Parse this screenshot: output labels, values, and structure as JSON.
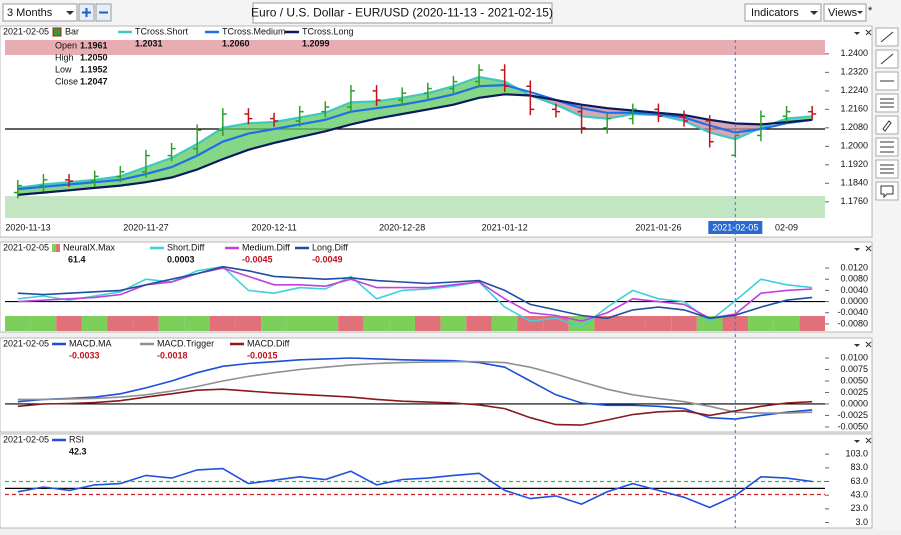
{
  "toolbar": {
    "range": "3 Months",
    "title": "Euro / U.S. Dollar - EUR/USD (2020-11-13 - 2021-02-15)",
    "indicators": "Indicators",
    "views": "Views",
    "views_mark": "*"
  },
  "chart_data": [
    {
      "type": "candlestick",
      "date": "2021-02-05",
      "categories": [
        "2020-11-13",
        null,
        null,
        null,
        null,
        "2020-11-27",
        null,
        null,
        null,
        null,
        "2020-12-11",
        null,
        null,
        null,
        null,
        "2020-12-28",
        null,
        null,
        null,
        "2021-01-12",
        null,
        null,
        null,
        null,
        null,
        "2021-01-26",
        null,
        null,
        "2021-02-05",
        null,
        "02-09",
        null
      ],
      "bars": {
        "name": "Bar",
        "up_color": "#2ca02c",
        "down_color": "#c0141c",
        "field_names": [
          "Open",
          "High",
          "Low",
          "Close"
        ],
        "open": [
          1.18,
          1.183,
          1.1855,
          1.185,
          1.187,
          1.189,
          1.196,
          1.199,
          1.207,
          1.214,
          1.212,
          1.211,
          1.215,
          1.217,
          1.224,
          1.22,
          1.223,
          1.225,
          1.228,
          1.233,
          1.226,
          1.216,
          1.215,
          1.208,
          1.212,
          1.216,
          1.213,
          1.211,
          1.1961,
          1.2047,
          1.213,
          1.215
        ],
        "high": [
          1.1855,
          1.188,
          1.188,
          1.1895,
          1.1915,
          1.1985,
          1.2015,
          1.2095,
          1.2165,
          1.2165,
          1.2145,
          1.2175,
          1.2195,
          1.2265,
          1.2265,
          1.2255,
          1.2275,
          1.2305,
          1.2355,
          1.2355,
          1.2285,
          1.2185,
          1.2175,
          1.2145,
          1.2185,
          1.2185,
          1.2155,
          1.2135,
          1.205,
          1.2155,
          1.2175,
          1.2175
        ],
        "high_labels": [
          null,
          null,
          null,
          null,
          null,
          null,
          null,
          null,
          null,
          null,
          null,
          null,
          null,
          null,
          null,
          null,
          null,
          null,
          null,
          null,
          null,
          null,
          null,
          null,
          null,
          null,
          null,
          null,
          "1.2050",
          null,
          null,
          null
        ],
        "low": [
          1.1775,
          1.1805,
          1.1825,
          1.1825,
          1.1845,
          1.1865,
          1.1935,
          1.1965,
          1.2045,
          1.2095,
          1.2085,
          1.2085,
          1.2125,
          1.2145,
          1.2175,
          1.2175,
          1.2205,
          1.2225,
          1.2255,
          1.2235,
          1.2135,
          1.2125,
          1.2055,
          1.2055,
          1.2095,
          1.2105,
          1.2085,
          1.1995,
          1.1952,
          1.2022,
          1.2105,
          1.2115
        ],
        "close": [
          1.183,
          1.1855,
          1.185,
          1.187,
          1.189,
          1.196,
          1.199,
          1.207,
          1.214,
          1.212,
          1.211,
          1.215,
          1.217,
          1.224,
          1.22,
          1.223,
          1.225,
          1.228,
          1.233,
          1.226,
          1.216,
          1.215,
          1.208,
          1.212,
          1.216,
          1.213,
          1.211,
          1.202,
          1.2047,
          1.213,
          1.215,
          1.214
        ]
      },
      "series": [
        {
          "name": "TCross.Short",
          "color": "#3ec8c0",
          "values": [
            1.182,
            1.1835,
            1.1845,
            1.1855,
            1.187,
            1.191,
            1.195,
            1.201,
            1.208,
            1.21,
            1.2105,
            1.2125,
            1.2145,
            1.219,
            1.2195,
            1.221,
            1.223,
            1.226,
            1.23,
            1.228,
            1.222,
            1.218,
            1.213,
            1.212,
            1.214,
            1.2135,
            1.211,
            1.206,
            1.2031,
            1.208,
            1.212,
            1.213
          ]
        },
        {
          "name": "TCross.Medium",
          "color": "#1f6fe8",
          "values": [
            1.1815,
            1.1825,
            1.1835,
            1.1845,
            1.1855,
            1.188,
            1.191,
            1.196,
            1.202,
            1.2055,
            1.2075,
            1.2095,
            1.2115,
            1.215,
            1.2165,
            1.218,
            1.22,
            1.2225,
            1.226,
            1.2265,
            1.2235,
            1.22,
            1.2165,
            1.2145,
            1.2145,
            1.214,
            1.2125,
            1.209,
            1.206,
            1.2075,
            1.21,
            1.2115
          ],
          "value_labels": [
            null,
            null,
            null,
            null,
            null,
            null,
            null,
            null,
            null,
            null,
            null,
            null,
            null,
            null,
            null,
            null,
            null,
            null,
            null,
            null,
            null,
            null,
            null,
            null,
            null,
            null,
            null,
            null,
            "1.2060",
            null,
            null,
            null
          ]
        },
        {
          "name": "TCross.Long",
          "color": "#0a1a5c",
          "values": [
            1.179,
            1.18,
            1.181,
            1.182,
            1.183,
            1.1845,
            1.1865,
            1.19,
            1.1945,
            1.1985,
            1.2015,
            1.204,
            1.2065,
            1.2095,
            1.212,
            1.214,
            1.216,
            1.218,
            1.221,
            1.2225,
            1.222,
            1.22,
            1.218,
            1.2165,
            1.2155,
            1.2145,
            1.2135,
            1.2115,
            1.2099,
            1.2095,
            1.2105,
            1.2115
          ]
        }
      ],
      "band_colors": [
        "#5cc85c",
        "#c98a9a"
      ],
      "zones": [
        {
          "low": 1.2395,
          "high": 1.246,
          "color": "#d46a72"
        },
        {
          "low": 1.169,
          "high": 1.1785,
          "color": "#8fd08f"
        }
      ],
      "hlines": [
        {
          "value": 1.2075,
          "color": "#000000",
          "dashed": false
        }
      ],
      "ylim": [
        1.169,
        1.246
      ],
      "yticks": [
        {
          "value": 1.176,
          "label": "1.1760"
        },
        {
          "value": 1.184,
          "label": "1.1840"
        },
        {
          "value": 1.192,
          "label": "1.1920"
        },
        {
          "value": 1.2,
          "label": "1.2000"
        },
        {
          "value": 1.208,
          "label": "1.2080"
        },
        {
          "value": 1.216,
          "label": "1.2160"
        },
        {
          "value": 1.224,
          "label": "1.2240"
        },
        {
          "value": 1.232,
          "label": "1.2320"
        },
        {
          "value": 1.24,
          "label": "1.2400"
        }
      ]
    },
    {
      "type": "line",
      "date": "2021-02-05",
      "signal": {
        "name": "NeuralX.Max",
        "value": 61.4,
        "colors": [
          "#7ccf5a",
          "#7ccf5a",
          "#e0707a",
          "#7ccf5a",
          "#e0707a",
          "#e0707a",
          "#7ccf5a",
          "#7ccf5a",
          "#e0707a",
          "#e0707a",
          "#7ccf5a",
          "#7ccf5a",
          "#7ccf5a",
          "#e0707a",
          "#7ccf5a",
          "#7ccf5a",
          "#e0707a",
          "#7ccf5a",
          "#e0707a",
          "#7ccf5a",
          "#e0707a",
          "#e0707a",
          "#7ccf5a",
          "#e0707a",
          "#e0707a",
          "#e0707a",
          "#e0707a",
          "#7ccf5a",
          "#e0707a",
          "#7ccf5a",
          "#7ccf5a",
          "#e0707a"
        ]
      },
      "series": [
        {
          "name": "Short.Diff",
          "color": "#40d0d8",
          "values": [
            0.001,
            0.002,
            0.0005,
            0.002,
            0.0035,
            0.008,
            0.007,
            0.011,
            0.0125,
            0.004,
            0.003,
            0.005,
            0.0045,
            0.009,
            0.001,
            0.004,
            0.0045,
            0.0055,
            0.007,
            -0.002,
            -0.007,
            -0.006,
            -0.009,
            -0.002,
            0.004,
            0.001,
            0.0,
            -0.007,
            0.0003,
            0.008,
            0.006,
            0.005
          ]
        },
        {
          "name": "Medium.Diff",
          "color": "#c040e0",
          "values": [
            0.0,
            0.0005,
            0.001,
            0.0015,
            0.0025,
            0.006,
            0.007,
            0.01,
            0.012,
            0.009,
            0.006,
            0.006,
            0.0055,
            0.008,
            0.005,
            0.005,
            0.005,
            0.006,
            0.007,
            0.001,
            -0.004,
            -0.005,
            -0.007,
            -0.004,
            0.001,
            0.0,
            -0.001,
            -0.006,
            -0.0045,
            0.003,
            0.004,
            0.0045
          ]
        },
        {
          "name": "Long.Diff",
          "color": "#1e4fa0",
          "values": [
            0.003,
            0.0025,
            0.003,
            0.0035,
            0.004,
            0.006,
            0.008,
            0.01,
            0.0125,
            0.011,
            0.009,
            0.0085,
            0.008,
            0.0085,
            0.0075,
            0.007,
            0.0065,
            0.007,
            0.0075,
            0.004,
            -0.001,
            -0.003,
            -0.005,
            -0.006,
            -0.003,
            -0.002,
            -0.003,
            -0.006,
            -0.0049,
            -0.002,
            0.0005,
            0.0015
          ]
        }
      ],
      "hlines": [
        {
          "value": 0,
          "color": "#000000",
          "dashed": false
        }
      ],
      "ylim": [
        -0.0109,
        0.0156
      ],
      "yticks": [
        {
          "value": -0.008,
          "label": "-0.0080"
        },
        {
          "value": -0.004,
          "label": "-0.0040"
        },
        {
          "value": 0,
          "label": "0.0000"
        },
        {
          "value": 0.004,
          "label": "0.0040"
        },
        {
          "value": 0.008,
          "label": "0.0080"
        },
        {
          "value": 0.012,
          "label": "0.0120"
        }
      ]
    },
    {
      "type": "line",
      "date": "2021-02-05",
      "series": [
        {
          "name": "MACD.MA",
          "color": "#1a4fd8",
          "values": [
            0.0005,
            0.001,
            0.0012,
            0.0015,
            0.0022,
            0.0035,
            0.005,
            0.0068,
            0.0082,
            0.0088,
            0.0092,
            0.0096,
            0.0098,
            0.01,
            0.0098,
            0.0096,
            0.0095,
            0.0094,
            0.009,
            0.008,
            0.005,
            0.002,
            0.0002,
            -0.0003,
            -0.0003,
            -0.0005,
            -0.001,
            -0.003,
            -0.0033,
            -0.0025,
            -0.0018,
            -0.0013
          ]
        },
        {
          "name": "MACD.Trigger",
          "color": "#909090",
          "values": [
            0.001,
            0.001,
            0.0011,
            0.0012,
            0.0015,
            0.002,
            0.0028,
            0.0038,
            0.005,
            0.006,
            0.0068,
            0.0075,
            0.008,
            0.0085,
            0.0088,
            0.009,
            0.0091,
            0.0092,
            0.0092,
            0.009,
            0.008,
            0.0065,
            0.0048,
            0.0032,
            0.002,
            0.0012,
            0.0005,
            -0.0005,
            -0.0018,
            -0.002,
            -0.002,
            -0.0018
          ]
        },
        {
          "name": "MACD.Diff",
          "color": "#8b1a1a",
          "values": [
            -0.0005,
            0.0,
            0.0001,
            0.0003,
            0.0007,
            0.0015,
            0.0022,
            0.003,
            0.0032,
            0.0028,
            0.0024,
            0.0021,
            0.0018,
            0.0015,
            0.001,
            0.0006,
            0.0004,
            0.0002,
            -0.0002,
            -0.001,
            -0.003,
            -0.0045,
            -0.0046,
            -0.0035,
            -0.0023,
            -0.0017,
            -0.0015,
            -0.0025,
            -0.0015,
            -0.0005,
            0.0002,
            0.0005
          ]
        }
      ],
      "hlines": [
        {
          "value": 0,
          "color": "#000000",
          "dashed": false
        }
      ],
      "ylim": [
        -0.0061,
        0.0113
      ],
      "yticks": [
        {
          "value": -0.005,
          "label": "-0.0050"
        },
        {
          "value": -0.0025,
          "label": "-0.0025"
        },
        {
          "value": 0,
          "label": "0.0000"
        },
        {
          "value": 0.0025,
          "label": "0.0025"
        },
        {
          "value": 0.005,
          "label": "0.0050"
        },
        {
          "value": 0.0075,
          "label": "0.0075"
        },
        {
          "value": 0.01,
          "label": "0.0100"
        }
      ]
    },
    {
      "type": "line",
      "date": "2021-02-05",
      "series": [
        {
          "name": "RSI",
          "color": "#2050e0",
          "values": [
            48,
            55,
            50,
            58,
            60,
            72,
            68,
            80,
            82,
            60,
            65,
            70,
            66,
            78,
            58,
            66,
            68,
            72,
            75,
            50,
            38,
            42,
            30,
            48,
            60,
            50,
            40,
            25,
            42.3,
            70,
            68,
            63
          ]
        }
      ],
      "hlines": [
        {
          "value": 63,
          "color": "#3cb43c",
          "dashed": true
        },
        {
          "value": 53,
          "color": "#000000",
          "dashed": false
        },
        {
          "value": 44,
          "color": "#d02020",
          "dashed": true
        }
      ],
      "ylim": [
        -5,
        115
      ],
      "yticks": [
        {
          "value": 3,
          "label": "3.0"
        },
        {
          "value": 23,
          "label": "23.0"
        },
        {
          "value": 43,
          "label": "43.0"
        },
        {
          "value": 63,
          "label": "63.0"
        },
        {
          "value": 83,
          "label": "83.0"
        },
        {
          "value": 103,
          "label": "103.0"
        }
      ]
    }
  ]
}
